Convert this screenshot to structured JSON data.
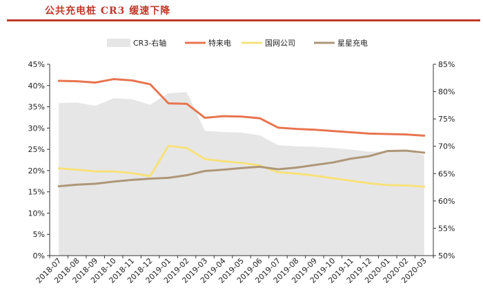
{
  "title": "公共充电桩 CR3 缓速下降",
  "chart_data": {
    "type": "line",
    "title": "公共充电桩 CR3 缓速下降",
    "categories": [
      "2018-07",
      "2018-08",
      "2018-09",
      "2018-10",
      "2018-11",
      "2018-12",
      "2019-01",
      "2019-02",
      "2019-03",
      "2019-04",
      "2019-05",
      "2019-06",
      "2019-07",
      "2019-08",
      "2019-09",
      "2019-10",
      "2019-11",
      "2019-12",
      "2020-01",
      "2020-02",
      "2020-03"
    ],
    "y_left": {
      "min": 0,
      "max": 45,
      "step": 5,
      "ticks": [
        "0%",
        "5%",
        "10%",
        "15%",
        "20%",
        "25%",
        "30%",
        "35%",
        "40%",
        "45%"
      ]
    },
    "y_right": {
      "min": 50,
      "max": 85,
      "step": 5,
      "ticks": [
        "50%",
        "55%",
        "60%",
        "65%",
        "70%",
        "75%",
        "80%",
        "85%"
      ]
    },
    "series": [
      {
        "name": "CR3-右轴",
        "kind": "area",
        "axis": "right",
        "color": "#e6e6e6",
        "values": [
          77.9,
          78.0,
          77.4,
          78.8,
          78.6,
          77.6,
          79.7,
          79.9,
          72.8,
          72.6,
          72.5,
          72.0,
          70.2,
          70.0,
          69.9,
          69.7,
          69.4,
          69.0,
          69.1,
          69.2,
          68.4
        ]
      },
      {
        "name": "特来电",
        "kind": "line",
        "axis": "left",
        "color": "#e8744f",
        "values": [
          41.1,
          41.0,
          40.7,
          41.5,
          41.2,
          40.3,
          35.8,
          35.7,
          32.4,
          32.8,
          32.7,
          32.3,
          30.1,
          29.8,
          29.6,
          29.3,
          29.0,
          28.7,
          28.6,
          28.5,
          28.2
        ]
      },
      {
        "name": "国网公司",
        "kind": "line",
        "axis": "left",
        "color": "#f7e17a",
        "values": [
          20.5,
          20.2,
          19.8,
          19.8,
          19.4,
          18.7,
          25.8,
          25.3,
          22.7,
          22.2,
          21.8,
          21.2,
          19.6,
          19.3,
          18.8,
          18.2,
          17.6,
          17.0,
          16.6,
          16.5,
          16.2
        ]
      },
      {
        "name": "星星充电",
        "kind": "line",
        "axis": "left",
        "color": "#ad9677",
        "values": [
          16.3,
          16.7,
          16.9,
          17.4,
          17.8,
          18.1,
          18.3,
          18.9,
          19.9,
          20.2,
          20.6,
          20.9,
          20.3,
          20.7,
          21.3,
          21.9,
          22.8,
          23.4,
          24.6,
          24.7,
          24.2
        ]
      }
    ],
    "grid": false,
    "legend_position": "top"
  }
}
